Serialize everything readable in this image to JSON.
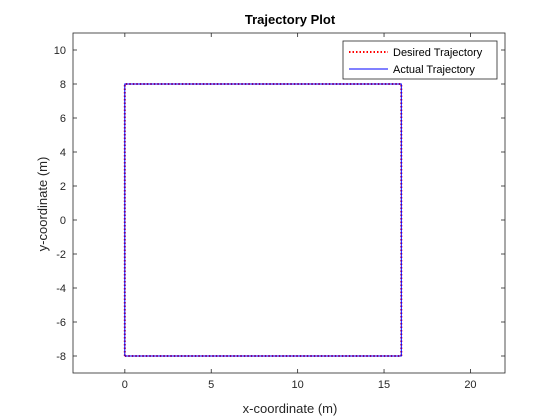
{
  "chart_data": {
    "type": "line",
    "title": "Trajectory Plot",
    "xlabel": "x-coordinate (m)",
    "ylabel": "y-coordinate (m)",
    "xlim": [
      -3,
      22
    ],
    "ylim": [
      -9,
      11
    ],
    "xticks": [
      0,
      5,
      10,
      15,
      20
    ],
    "yticks": [
      -8,
      -6,
      -4,
      -2,
      0,
      2,
      4,
      6,
      8,
      10
    ],
    "grid": false,
    "legend_position": "top-right",
    "series": [
      {
        "name": "Desired Trajectory",
        "color": "#ff0000",
        "style": "dotted",
        "x": [
          0,
          16,
          16,
          0,
          0
        ],
        "y": [
          -8,
          -8,
          8,
          8,
          -8
        ]
      },
      {
        "name": "Actual Trajectory",
        "color": "#0000ff",
        "style": "solid",
        "x": [
          0,
          16,
          16,
          0,
          0
        ],
        "y": [
          -8,
          -8,
          8,
          8,
          -8
        ]
      }
    ]
  }
}
